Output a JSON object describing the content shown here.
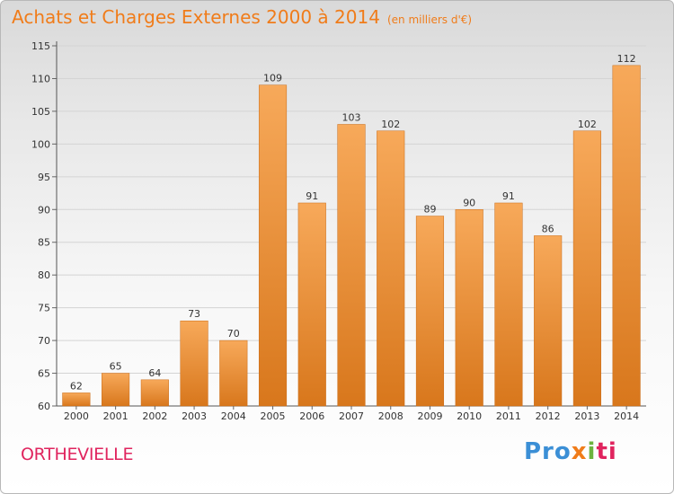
{
  "header": {
    "title": "Achats et Charges Externes 2000 à 2014",
    "subtitle": "(en milliers d'€)"
  },
  "footer": {
    "commune": "ORTHEVIELLE",
    "brand": [
      "Pro",
      "x",
      "i",
      "ti"
    ]
  },
  "colors": {
    "accent": "#f07c1a",
    "commune": "#e0245e",
    "bar_light": "#f7a95a",
    "bar_dark": "#d8771c"
  },
  "chart_data": {
    "type": "bar",
    "categories": [
      "2000",
      "2001",
      "2002",
      "2003",
      "2004",
      "2005",
      "2006",
      "2007",
      "2008",
      "2009",
      "2010",
      "2011",
      "2012",
      "2013",
      "2014"
    ],
    "values": [
      62,
      65,
      64,
      73,
      70,
      109,
      91,
      103,
      102,
      89,
      90,
      91,
      86,
      102,
      112
    ],
    "title": "Achats et Charges Externes 2000 à 2014",
    "xlabel": "",
    "ylabel": "",
    "ylim": [
      60,
      115
    ],
    "yticks": [
      60,
      65,
      70,
      75,
      80,
      85,
      90,
      95,
      100,
      105,
      110,
      115
    ],
    "grid": true,
    "legend": "none"
  }
}
